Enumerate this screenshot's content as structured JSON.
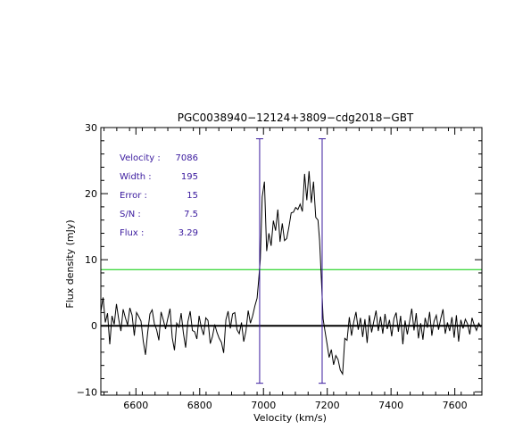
{
  "chart_data": {
    "type": "line",
    "title": "PGC0038940−12124+3809−cdg2018−GBT",
    "xlabel": "Velocity (km/s)",
    "ylabel": "Flux density (mJy)",
    "xlim": [
      6490,
      7685
    ],
    "ylim": [
      -10.5,
      30
    ],
    "x_ticks": [
      6600,
      6800,
      7000,
      7200,
      7400,
      7600
    ],
    "y_ticks": [
      -10,
      0,
      10,
      20,
      30
    ],
    "x_tick_labels": [
      "6600",
      "6800",
      "7000",
      "7200",
      "7400",
      "7600"
    ],
    "y_tick_labels": [
      "−10",
      "0",
      "10",
      "20",
      "30"
    ],
    "grid": false,
    "colors": {
      "spectrum": "#000000",
      "zero_line": "#000000",
      "threshold_line": "#00cc00",
      "markers": "#3a1a9e",
      "annotation_text": "#3a1a9e"
    },
    "threshold_level": 8.5,
    "edge_markers": [
      {
        "velocity": 6988,
        "y_low": -8.7,
        "y_high": 28.3
      },
      {
        "velocity": 7184,
        "y_low": -8.7,
        "y_high": 28.3
      }
    ],
    "annotations": [
      {
        "label": "Velocity :",
        "value": "7086"
      },
      {
        "label": "Width :",
        "value": "195"
      },
      {
        "label": "Error :",
        "value": "15"
      },
      {
        "label": "S/N :",
        "value": "7.5"
      },
      {
        "label": "Flux :",
        "value": "3.29"
      }
    ],
    "series": [
      {
        "x": [
          6490,
          6497,
          6504,
          6511,
          6518,
          6525,
          6532,
          6539,
          6546,
          6553,
          6560,
          6567,
          6574,
          6581,
          6588,
          6595,
          6602,
          6609,
          6616,
          6623,
          6630,
          6637,
          6644,
          6651,
          6658,
          6665,
          6672,
          6679,
          6686,
          6693,
          6700,
          6707,
          6714,
          6721,
          6728,
          6735,
          6742,
          6749,
          6756,
          6763,
          6770,
          6777,
          6784,
          6791,
          6798,
          6805,
          6812,
          6819,
          6826,
          6833,
          6840,
          6847,
          6854,
          6861,
          6868,
          6875,
          6882,
          6889,
          6896,
          6903,
          6910,
          6917,
          6924,
          6931,
          6938,
          6945,
          6952,
          6959,
          6966,
          6973,
          6980,
          6985,
          6990,
          6996,
          7003,
          7010,
          7017,
          7024,
          7031,
          7038,
          7045,
          7052,
          7059,
          7066,
          7073,
          7080,
          7087,
          7094,
          7101,
          7108,
          7115,
          7122,
          7129,
          7136,
          7143,
          7150,
          7157,
          7164,
          7171,
          7176,
          7182,
          7187,
          7192,
          7199,
          7206,
          7213,
          7220,
          7227,
          7234,
          7241,
          7248,
          7255,
          7262,
          7269,
          7276,
          7283,
          7290,
          7297,
          7304,
          7311,
          7318,
          7325,
          7332,
          7339,
          7346,
          7353,
          7360,
          7367,
          7374,
          7381,
          7388,
          7395,
          7402,
          7409,
          7416,
          7423,
          7430,
          7437,
          7444,
          7451,
          7458,
          7465,
          7472,
          7479,
          7486,
          7493,
          7500,
          7507,
          7514,
          7521,
          7528,
          7535,
          7542,
          7549,
          7556,
          7563,
          7570,
          7577,
          7584,
          7591,
          7598,
          7605,
          7612,
          7619,
          7626,
          7633,
          7640,
          7647,
          7654,
          7661,
          7668,
          7675,
          7682
        ],
        "y": [
          2.1,
          4.3,
          0.5,
          1.9,
          -2.8,
          1.5,
          0.2,
          3.3,
          1.0,
          -0.8,
          2.5,
          1.2,
          0.1,
          2.7,
          1.6,
          -1.5,
          2.0,
          1.4,
          0.7,
          -2.3,
          -4.4,
          -1.0,
          1.8,
          2.4,
          0.3,
          -0.6,
          -2.2,
          2.1,
          0.9,
          -0.5,
          1.1,
          2.6,
          -1.8,
          -3.7,
          0.4,
          -0.2,
          1.9,
          -1.1,
          -3.3,
          0.6,
          2.2,
          -0.7,
          -0.9,
          -2.0,
          1.5,
          -0.3,
          -1.4,
          1.2,
          0.8,
          -2.7,
          -1.6,
          0.2,
          -1.0,
          -1.9,
          -2.5,
          -4.1,
          0.9,
          2.2,
          -0.4,
          1.8,
          2.0,
          -0.6,
          -1.2,
          0.5,
          -2.4,
          -0.8,
          2.3,
          0.4,
          1.5,
          3.0,
          4.2,
          7.0,
          10.1,
          19.5,
          21.8,
          11.3,
          14.0,
          12.1,
          15.9,
          14.4,
          17.6,
          12.7,
          15.5,
          12.9,
          13.2,
          15.0,
          17.1,
          17.2,
          17.9,
          17.6,
          18.4,
          17.3,
          23.0,
          19.0,
          23.4,
          18.6,
          21.8,
          16.4,
          16.0,
          12.9,
          6.5,
          1.0,
          -0.5,
          -2.6,
          -4.8,
          -3.6,
          -5.9,
          -4.5,
          -5.1,
          -6.7,
          -7.3,
          -1.9,
          -2.2,
          1.3,
          -1.5,
          0.6,
          2.1,
          -0.6,
          1.2,
          -1.7,
          1.0,
          -2.6,
          1.6,
          -1.0,
          0.7,
          2.3,
          -0.8,
          1.4,
          -1.2,
          1.8,
          -0.5,
          0.9,
          -1.6,
          1.1,
          2.0,
          -0.9,
          1.5,
          -2.8,
          0.8,
          -1.3,
          0.6,
          2.6,
          -0.7,
          1.9,
          -1.9,
          0.4,
          -2.1,
          1.2,
          -0.3,
          2.1,
          -1.5,
          0.7,
          1.6,
          -0.6,
          1.1,
          2.5,
          -1.2,
          0.5,
          -0.8,
          1.3,
          -1.8,
          1.6,
          -2.4,
          0.9,
          -0.4,
          1.0,
          0.3,
          -1.3,
          1.2,
          0.1,
          -0.7,
          0.4,
          -0.2
        ]
      }
    ]
  }
}
